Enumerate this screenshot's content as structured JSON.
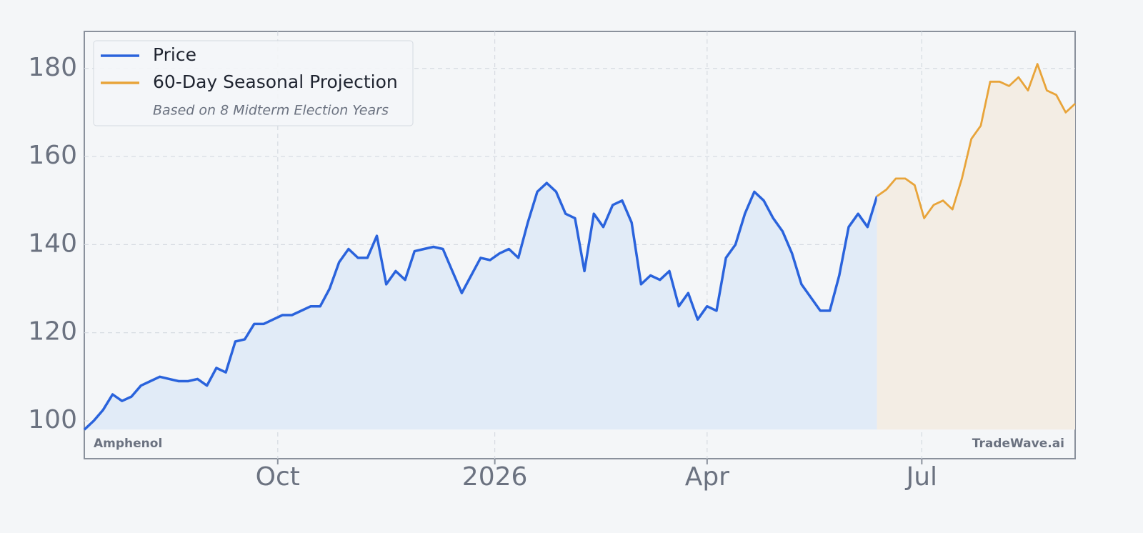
{
  "chart_data": {
    "type": "line",
    "x": [
      0,
      4,
      8,
      12,
      16,
      20,
      24,
      28,
      32,
      36,
      40,
      44,
      48,
      52,
      56,
      60,
      64,
      68,
      72,
      76,
      80,
      84,
      88,
      92,
      96,
      100,
      104,
      108,
      112,
      116,
      120,
      124,
      128,
      132,
      136,
      140,
      144,
      148,
      152,
      156,
      160,
      164,
      168,
      172,
      176,
      180,
      184,
      188,
      192,
      196,
      200,
      204,
      208,
      212,
      216,
      220,
      224,
      228,
      232,
      236,
      240,
      244,
      248,
      252,
      256,
      260,
      264,
      268,
      272,
      276,
      280,
      284,
      288,
      292,
      296,
      300,
      304,
      308,
      312,
      316,
      320,
      324,
      328,
      332,
      336,
      340,
      344,
      348,
      352,
      356,
      360,
      364,
      368,
      372,
      376,
      380,
      384,
      388,
      392,
      396,
      400,
      404,
      408,
      412,
      416,
      420
    ],
    "series": [
      {
        "name": "Price",
        "color": "#2a63dc",
        "fill": "#e1ebf7",
        "values": [
          98,
          100,
          102.5,
          106,
          104.5,
          105.5,
          108,
          109,
          110,
          109.5,
          109,
          109,
          109.5,
          108,
          112,
          111,
          118,
          118.5,
          122,
          122,
          123,
          124,
          124,
          125,
          126,
          126,
          130,
          136,
          139,
          137,
          137,
          142,
          131,
          134,
          132,
          138.5,
          139,
          139.5,
          139,
          134,
          129,
          133,
          137,
          136.5,
          138,
          139,
          137,
          145,
          152,
          154,
          152,
          147,
          146,
          134,
          147,
          144,
          149,
          150,
          145,
          131,
          133,
          132,
          134,
          126,
          129,
          123,
          126,
          125,
          137,
          140,
          147,
          152,
          150,
          146,
          143,
          138,
          131,
          128,
          125,
          125,
          133,
          144,
          147,
          144,
          151,
          null,
          null,
          null,
          null,
          null,
          null,
          null,
          null,
          null,
          null,
          null,
          null,
          null,
          null,
          null,
          null,
          null,
          null,
          null,
          null,
          null
        ]
      },
      {
        "name": "60-Day Seasonal Projection",
        "color": "#e8a43a",
        "fill": "#f3ede4",
        "values": [
          null,
          null,
          null,
          null,
          null,
          null,
          null,
          null,
          null,
          null,
          null,
          null,
          null,
          null,
          null,
          null,
          null,
          null,
          null,
          null,
          null,
          null,
          null,
          null,
          null,
          null,
          null,
          null,
          null,
          null,
          null,
          null,
          null,
          null,
          null,
          null,
          null,
          null,
          null,
          null,
          null,
          null,
          null,
          null,
          null,
          null,
          null,
          null,
          null,
          null,
          null,
          null,
          null,
          null,
          null,
          null,
          null,
          null,
          null,
          null,
          null,
          null,
          null,
          null,
          null,
          null,
          null,
          null,
          null,
          null,
          null,
          null,
          null,
          null,
          null,
          null,
          null,
          null,
          null,
          null,
          null,
          null,
          null,
          null,
          151,
          152.5,
          155,
          155,
          153.5,
          146,
          149,
          150,
          148,
          155,
          164,
          167,
          177,
          177,
          176,
          178,
          175,
          181,
          175,
          174,
          170,
          172
        ]
      }
    ],
    "legend_note": "Based on 8 Midterm Election Years",
    "annotations": [
      "Amphenol",
      "TradeWave.ai"
    ],
    "xlim": [
      0,
      420
    ],
    "xticks": [
      {
        "value": 82,
        "label": "Oct"
      },
      {
        "value": 174,
        "label": "2026"
      },
      {
        "value": 264,
        "label": "Apr"
      },
      {
        "value": 355,
        "label": "Jul"
      }
    ],
    "ylim": [
      91.4,
      188.4
    ],
    "yticks": [
      100,
      120,
      140,
      160,
      180
    ],
    "grid": true,
    "legend": "upper left"
  }
}
